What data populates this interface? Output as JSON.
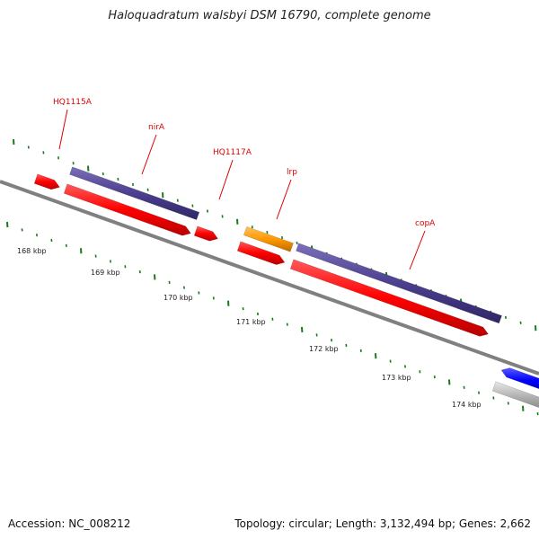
{
  "title": "Haloquadratum walsbyi DSM 16790, complete genome",
  "footer": {
    "accession": "Accession: NC_008212",
    "summary": "Topology: circular; Length: 3,132,494 bp; Genes: 2,662"
  },
  "colors": {
    "backbone": "#808080",
    "gene_red": "#ff0000",
    "gene_purple": "#4b3f8f",
    "gene_orange": "#ff9900",
    "gene_blue": "#0000ff",
    "gene_gray": "#b0b0b0",
    "tick": "#1a7a1a",
    "label": "#dd0000"
  },
  "kbp_labels": [
    "168 kbp",
    "169 kbp",
    "170 kbp",
    "171 kbp",
    "172 kbp",
    "173 kbp",
    "174 kbp"
  ],
  "gene_labels": [
    "HQ1115A",
    "nirA",
    "HQ1117A",
    "lrp",
    "copA"
  ]
}
